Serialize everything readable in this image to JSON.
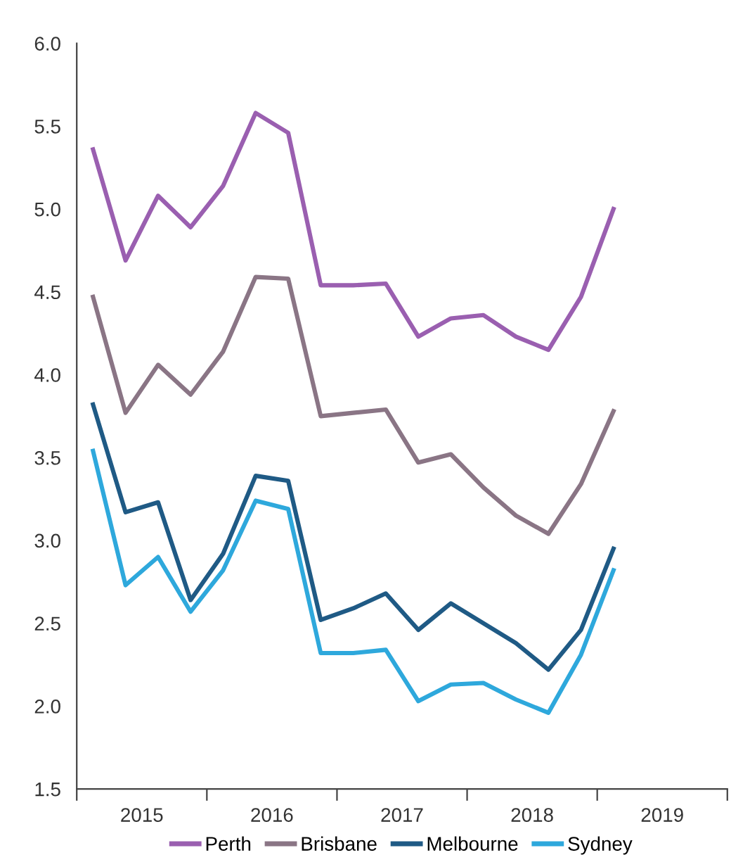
{
  "chart_data": {
    "type": "line",
    "x": [
      2015.125,
      2015.375,
      2015.625,
      2015.875,
      2016.125,
      2016.375,
      2016.625,
      2016.875,
      2017.125,
      2017.375,
      2017.625,
      2017.875,
      2018.125,
      2018.375,
      2018.625,
      2018.875,
      2019.125
    ],
    "series": [
      {
        "name": "Perth",
        "color": "#9a5fb0",
        "values": [
          5.36,
          4.69,
          5.08,
          4.89,
          5.14,
          5.58,
          5.46,
          4.54,
          4.54,
          4.55,
          4.23,
          4.34,
          4.36,
          4.23,
          4.15,
          4.47,
          5.0
        ]
      },
      {
        "name": "Brisbane",
        "color": "#8a7585",
        "values": [
          4.47,
          3.77,
          4.06,
          3.88,
          4.14,
          4.59,
          4.58,
          3.75,
          3.77,
          3.79,
          3.47,
          3.52,
          3.32,
          3.15,
          3.04,
          3.34,
          3.78
        ]
      },
      {
        "name": "Melbourne",
        "color": "#1f5a85",
        "values": [
          3.82,
          3.17,
          3.23,
          2.64,
          2.92,
          3.39,
          3.36,
          2.52,
          2.59,
          2.68,
          2.46,
          2.62,
          2.5,
          2.38,
          2.22,
          2.46,
          2.95
        ]
      },
      {
        "name": "Sydney",
        "color": "#2ea8dc",
        "values": [
          3.54,
          2.73,
          2.9,
          2.57,
          2.82,
          3.24,
          3.19,
          2.32,
          2.32,
          2.34,
          2.03,
          2.13,
          2.14,
          2.04,
          1.96,
          2.31,
          2.82
        ]
      }
    ],
    "xlim": [
      2015,
      2020
    ],
    "xticks": [
      {
        "value": 2015,
        "label": null
      },
      {
        "value": 2015.5,
        "label": "2015"
      },
      {
        "value": 2016,
        "label": null
      },
      {
        "value": 2016.5,
        "label": "2016"
      },
      {
        "value": 2017,
        "label": null
      },
      {
        "value": 2017.5,
        "label": "2017"
      },
      {
        "value": 2018,
        "label": null
      },
      {
        "value": 2018.5,
        "label": "2018"
      },
      {
        "value": 2019,
        "label": null
      },
      {
        "value": 2019.5,
        "label": "2019"
      },
      {
        "value": 2020,
        "label": null
      }
    ],
    "ylim": [
      1.5,
      6.0
    ],
    "yticks": [
      {
        "value": 1.5,
        "label": "1.5"
      },
      {
        "value": 2.0,
        "label": "2.0"
      },
      {
        "value": 2.5,
        "label": "2.5"
      },
      {
        "value": 3.0,
        "label": "3.0"
      },
      {
        "value": 3.5,
        "label": "3.5"
      },
      {
        "value": 4.0,
        "label": "4.0"
      },
      {
        "value": 4.5,
        "label": "4.5"
      },
      {
        "value": 5.0,
        "label": "5.0"
      },
      {
        "value": 5.5,
        "label": "5.5"
      },
      {
        "value": 6.0,
        "label": "6.0"
      }
    ],
    "grid": false,
    "legend": "bottom",
    "line_style": "solid"
  }
}
